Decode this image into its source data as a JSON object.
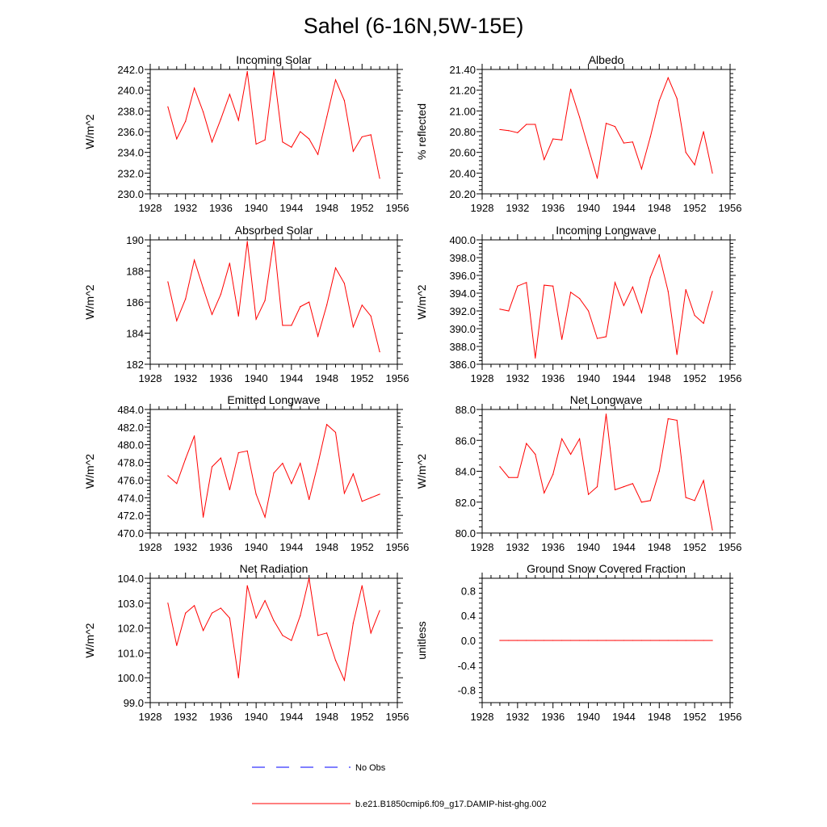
{
  "figure": {
    "title": "Sahel (6-16N,5W-15E)",
    "legend": [
      {
        "label": "No Obs",
        "color": "#0000ff",
        "style": "dashed"
      },
      {
        "label": "b.e21.B1850cmip6.f09_g17.DAMIP-hist-ghg.002",
        "color": "#ff0000",
        "style": "solid"
      }
    ]
  },
  "chart_data": [
    {
      "type": "line",
      "title": "Incoming Solar",
      "ylabel": "W/m^2",
      "xlim": [
        1928,
        1956
      ],
      "ylim": [
        230,
        242
      ],
      "xticks": [
        "1928",
        "1932",
        "1936",
        "1940",
        "1944",
        "1948",
        "1952",
        "1956"
      ],
      "yticks": [
        "230.0",
        "232.0",
        "234.0",
        "236.0",
        "238.0",
        "240.0",
        "242.0"
      ],
      "x": [
        1930,
        1931,
        1932,
        1933,
        1934,
        1935,
        1936,
        1937,
        1938,
        1939,
        1940,
        1941,
        1942,
        1943,
        1944,
        1945,
        1946,
        1947,
        1948,
        1949,
        1950,
        1951,
        1952,
        1953,
        1954
      ],
      "series": [
        {
          "name": "b.e21.B1850cmip6.f09_g17.DAMIP-hist-ghg.002",
          "color": "#ff0000",
          "values": [
            238.4,
            235.3,
            237.0,
            240.2,
            237.9,
            235.0,
            237.2,
            239.6,
            237.1,
            241.8,
            234.8,
            235.2,
            241.9,
            235.0,
            234.5,
            236.0,
            235.3,
            233.8,
            237.4,
            241.0,
            239.0,
            234.1,
            235.5,
            235.7,
            231.5
          ]
        }
      ]
    },
    {
      "type": "line",
      "title": "Albedo",
      "ylabel": "% reflected",
      "xlim": [
        1928,
        1956
      ],
      "ylim": [
        20.2,
        21.4
      ],
      "xticks": [
        "1928",
        "1932",
        "1936",
        "1940",
        "1944",
        "1948",
        "1952",
        "1956"
      ],
      "yticks": [
        "20.20",
        "20.40",
        "20.60",
        "20.80",
        "21.00",
        "21.20",
        "21.40"
      ],
      "x": [
        1930,
        1931,
        1932,
        1933,
        1934,
        1935,
        1936,
        1937,
        1938,
        1939,
        1940,
        1941,
        1942,
        1943,
        1944,
        1945,
        1946,
        1947,
        1948,
        1949,
        1950,
        1951,
        1952,
        1953,
        1954
      ],
      "series": [
        {
          "name": "b.e21.B1850cmip6.f09_g17.DAMIP-hist-ghg.002",
          "color": "#ff0000",
          "values": [
            20.82,
            20.81,
            20.79,
            20.87,
            20.87,
            20.53,
            20.73,
            20.72,
            21.21,
            20.94,
            20.64,
            20.35,
            20.88,
            20.85,
            20.69,
            20.7,
            20.44,
            20.75,
            21.1,
            21.32,
            21.12,
            20.6,
            20.48,
            20.8,
            20.4
          ]
        }
      ]
    },
    {
      "type": "line",
      "title": "Absorbed Solar",
      "ylabel": "W/m^2",
      "xlim": [
        1928,
        1956
      ],
      "ylim": [
        182,
        190
      ],
      "xticks": [
        "1928",
        "1932",
        "1936",
        "1940",
        "1944",
        "1948",
        "1952",
        "1956"
      ],
      "yticks": [
        "182",
        "184",
        "186",
        "188",
        "190"
      ],
      "x": [
        1930,
        1931,
        1932,
        1933,
        1934,
        1935,
        1936,
        1937,
        1938,
        1939,
        1940,
        1941,
        1942,
        1943,
        1944,
        1945,
        1946,
        1947,
        1948,
        1949,
        1950,
        1951,
        1952,
        1953,
        1954
      ],
      "series": [
        {
          "name": "b.e21.B1850cmip6.f09_g17.DAMIP-hist-ghg.002",
          "color": "#ff0000",
          "values": [
            187.3,
            184.8,
            186.2,
            188.7,
            186.9,
            185.2,
            186.5,
            188.5,
            185.1,
            189.9,
            184.9,
            186.1,
            190.0,
            184.5,
            184.5,
            185.7,
            186.0,
            183.8,
            185.8,
            188.2,
            187.2,
            184.4,
            185.8,
            185.1,
            182.8
          ]
        }
      ]
    },
    {
      "type": "line",
      "title": "Incoming Longwave",
      "ylabel": "W/m^2",
      "xlim": [
        1928,
        1956
      ],
      "ylim": [
        386,
        400
      ],
      "xticks": [
        "1928",
        "1932",
        "1936",
        "1940",
        "1944",
        "1948",
        "1952",
        "1956"
      ],
      "yticks": [
        "386.0",
        "388.0",
        "390.0",
        "392.0",
        "394.0",
        "396.0",
        "398.0",
        "400.0"
      ],
      "x": [
        1930,
        1931,
        1932,
        1933,
        1934,
        1935,
        1936,
        1937,
        1938,
        1939,
        1940,
        1941,
        1942,
        1943,
        1944,
        1945,
        1946,
        1947,
        1948,
        1949,
        1950,
        1951,
        1952,
        1953,
        1954
      ],
      "series": [
        {
          "name": "b.e21.B1850cmip6.f09_g17.DAMIP-hist-ghg.002",
          "color": "#ff0000",
          "values": [
            392.2,
            392.0,
            394.8,
            395.2,
            386.7,
            394.9,
            394.8,
            388.8,
            394.1,
            393.4,
            392.0,
            388.9,
            389.1,
            395.2,
            392.6,
            394.7,
            391.8,
            395.8,
            398.3,
            394.2,
            387.1,
            394.4,
            391.5,
            390.6,
            394.2
          ]
        }
      ]
    },
    {
      "type": "line",
      "title": "Emitted Longwave",
      "ylabel": "W/m^2",
      "xlim": [
        1928,
        1956
      ],
      "ylim": [
        470,
        484
      ],
      "xticks": [
        "1928",
        "1932",
        "1936",
        "1940",
        "1944",
        "1948",
        "1952",
        "1956"
      ],
      "yticks": [
        "470.0",
        "472.0",
        "474.0",
        "476.0",
        "478.0",
        "480.0",
        "482.0",
        "484.0"
      ],
      "x": [
        1930,
        1931,
        1932,
        1933,
        1934,
        1935,
        1936,
        1937,
        1938,
        1939,
        1940,
        1941,
        1942,
        1943,
        1944,
        1945,
        1946,
        1947,
        1948,
        1949,
        1950,
        1951,
        1952,
        1953,
        1954
      ],
      "series": [
        {
          "name": "b.e21.B1850cmip6.f09_g17.DAMIP-hist-ghg.002",
          "color": "#ff0000",
          "values": [
            476.5,
            475.6,
            478.4,
            481.0,
            471.8,
            477.5,
            478.5,
            474.9,
            479.1,
            479.3,
            474.4,
            471.8,
            476.8,
            477.9,
            475.6,
            477.9,
            473.8,
            477.8,
            482.3,
            481.4,
            474.5,
            476.7,
            473.6,
            474.0,
            474.4
          ]
        }
      ]
    },
    {
      "type": "line",
      "title": "Net Longwave",
      "ylabel": "W/m^2",
      "xlim": [
        1928,
        1956
      ],
      "ylim": [
        80,
        88
      ],
      "xticks": [
        "1928",
        "1932",
        "1936",
        "1940",
        "1944",
        "1948",
        "1952",
        "1956"
      ],
      "yticks": [
        "80.0",
        "82.0",
        "84.0",
        "86.0",
        "88.0"
      ],
      "x": [
        1930,
        1931,
        1932,
        1933,
        1934,
        1935,
        1936,
        1937,
        1938,
        1939,
        1940,
        1941,
        1942,
        1943,
        1944,
        1945,
        1946,
        1947,
        1948,
        1949,
        1950,
        1951,
        1952,
        1953,
        1954
      ],
      "series": [
        {
          "name": "b.e21.B1850cmip6.f09_g17.DAMIP-hist-ghg.002",
          "color": "#ff0000",
          "values": [
            84.3,
            83.6,
            83.6,
            85.8,
            85.1,
            82.6,
            83.8,
            86.1,
            85.1,
            86.1,
            82.5,
            83.0,
            87.7,
            82.8,
            83.0,
            83.2,
            82.0,
            82.1,
            84.0,
            87.4,
            87.3,
            82.3,
            82.1,
            83.4,
            80.2
          ]
        }
      ]
    },
    {
      "type": "line",
      "title": "Net Radiation",
      "ylabel": "W/m^2",
      "xlim": [
        1928,
        1956
      ],
      "ylim": [
        99,
        104
      ],
      "xticks": [
        "1928",
        "1932",
        "1936",
        "1940",
        "1944",
        "1948",
        "1952",
        "1956"
      ],
      "yticks": [
        "99.0",
        "100.0",
        "101.0",
        "102.0",
        "103.0",
        "104.0"
      ],
      "x": [
        1930,
        1931,
        1932,
        1933,
        1934,
        1935,
        1936,
        1937,
        1938,
        1939,
        1940,
        1941,
        1942,
        1943,
        1944,
        1945,
        1946,
        1947,
        1948,
        1949,
        1950,
        1951,
        1952,
        1953,
        1954
      ],
      "series": [
        {
          "name": "b.e21.B1850cmip6.f09_g17.DAMIP-hist-ghg.002",
          "color": "#ff0000",
          "values": [
            103.0,
            101.3,
            102.6,
            102.9,
            101.9,
            102.6,
            102.8,
            102.4,
            100.0,
            103.7,
            102.4,
            103.1,
            102.3,
            101.7,
            101.5,
            102.5,
            104.0,
            101.7,
            101.8,
            100.7,
            99.9,
            102.2,
            103.7,
            101.8,
            102.7
          ]
        }
      ]
    },
    {
      "type": "line",
      "title": "Ground Snow Covered Fraction",
      "ylabel": "unitless",
      "xlim": [
        1928,
        1956
      ],
      "ylim": [
        -1.0,
        1.0
      ],
      "xticks": [
        "1928",
        "1932",
        "1936",
        "1940",
        "1944",
        "1948",
        "1952",
        "1956"
      ],
      "yticks": [
        "-0.8",
        "-0.4",
        "0.0",
        "0.4",
        "0.8"
      ],
      "x": [
        1930,
        1931,
        1932,
        1933,
        1934,
        1935,
        1936,
        1937,
        1938,
        1939,
        1940,
        1941,
        1942,
        1943,
        1944,
        1945,
        1946,
        1947,
        1948,
        1949,
        1950,
        1951,
        1952,
        1953,
        1954
      ],
      "series": [
        {
          "name": "b.e21.B1850cmip6.f09_g17.DAMIP-hist-ghg.002",
          "color": "#ff0000",
          "values": [
            0,
            0,
            0,
            0,
            0,
            0,
            0,
            0,
            0,
            0,
            0,
            0,
            0,
            0,
            0,
            0,
            0,
            0,
            0,
            0,
            0,
            0,
            0,
            0,
            0
          ]
        }
      ]
    }
  ]
}
